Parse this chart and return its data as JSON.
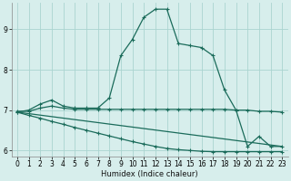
{
  "xlabel": "Humidex (Indice chaleur)",
  "bg_color": "#d7eeec",
  "grid_color": "#aad4d0",
  "line_color": "#1a6b5a",
  "xlim": [
    -0.5,
    23.5
  ],
  "ylim": [
    5.85,
    9.65
  ],
  "yticks": [
    6,
    7,
    8,
    9
  ],
  "xticks": [
    0,
    1,
    2,
    3,
    4,
    5,
    6,
    7,
    8,
    9,
    10,
    11,
    12,
    13,
    14,
    15,
    16,
    17,
    18,
    19,
    20,
    21,
    22,
    23
  ],
  "series_humidex": {
    "x": [
      0,
      1,
      2,
      3,
      4,
      5,
      6,
      7,
      8,
      9,
      10,
      11,
      12,
      13,
      14,
      15,
      16,
      17,
      18,
      19,
      20,
      21,
      22,
      23
    ],
    "y": [
      6.95,
      7.0,
      7.15,
      7.25,
      7.1,
      7.05,
      7.05,
      7.05,
      7.3,
      8.35,
      8.75,
      9.3,
      9.5,
      9.5,
      8.65,
      8.6,
      8.55,
      8.35,
      7.5,
      7.0,
      6.1,
      6.35,
      6.1,
      6.1
    ]
  },
  "series_flat": {
    "x": [
      0,
      1,
      2,
      3,
      4,
      5,
      6,
      7,
      8,
      9,
      10,
      11,
      12,
      13,
      14,
      15,
      16,
      17,
      18,
      19,
      20,
      21,
      22,
      23
    ],
    "y": [
      6.97,
      6.97,
      7.05,
      7.1,
      7.05,
      7.02,
      7.02,
      7.02,
      7.02,
      7.02,
      7.02,
      7.02,
      7.02,
      7.02,
      7.02,
      7.02,
      7.02,
      7.02,
      7.02,
      7.0,
      7.0,
      6.97,
      6.97,
      6.95
    ]
  },
  "series_diagonal": {
    "x": [
      0,
      1,
      2,
      3,
      4,
      5,
      6,
      7,
      8,
      9,
      10,
      11,
      12,
      13,
      14,
      15,
      16,
      17,
      18,
      19,
      20,
      21,
      22,
      23
    ],
    "y": [
      6.95,
      6.87,
      6.8,
      6.72,
      6.65,
      6.57,
      6.5,
      6.43,
      6.36,
      6.29,
      6.22,
      6.16,
      6.1,
      6.05,
      6.02,
      6.0,
      5.98,
      5.97,
      5.97,
      5.97,
      5.97,
      5.97,
      5.97,
      5.97
    ]
  },
  "series_linear": {
    "x": [
      0,
      23
    ],
    "y": [
      6.95,
      6.1
    ]
  }
}
